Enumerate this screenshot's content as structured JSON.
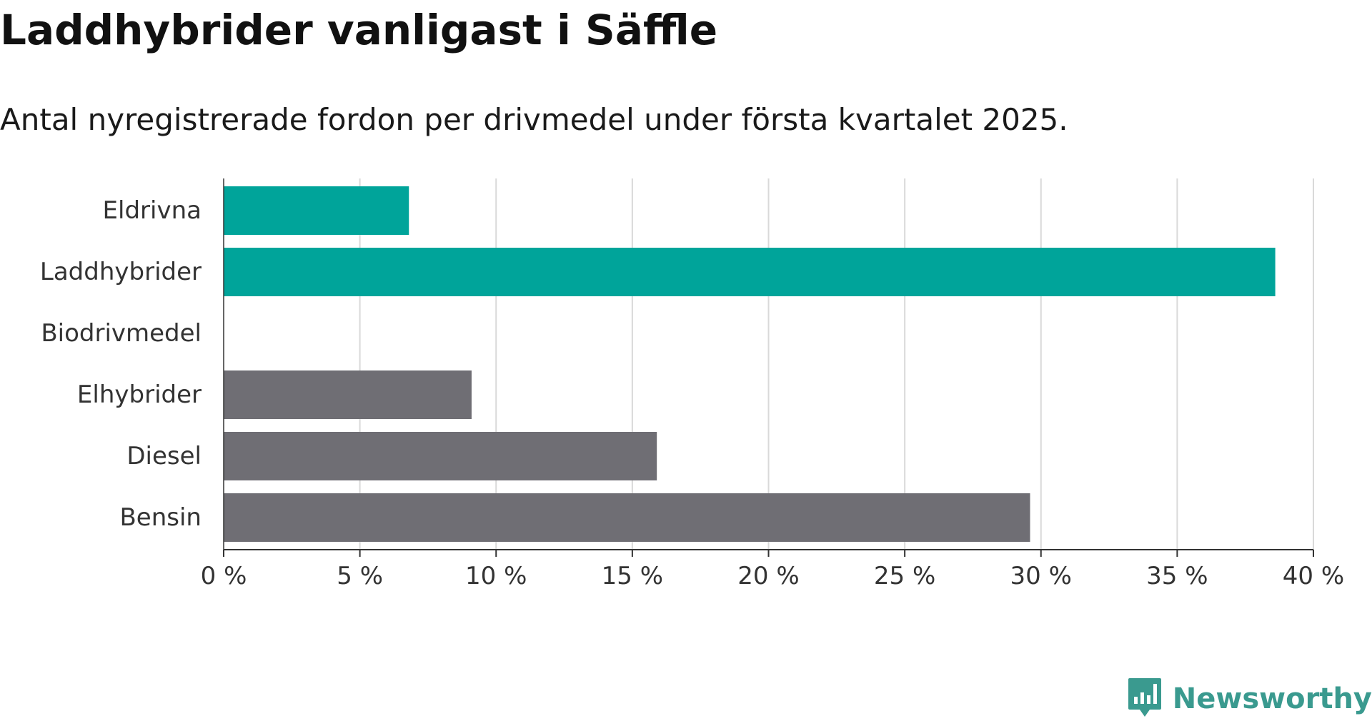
{
  "header": {
    "title": "Laddhybrider vanligast i Säffle",
    "subtitle": "Antal nyregistrerade fordon per drivmedel under första kvartalet 2025."
  },
  "chart_data": {
    "type": "bar",
    "orientation": "horizontal",
    "title": "Laddhybrider vanligast i Säffle",
    "subtitle": "Antal nyregistrerade fordon per drivmedel under första kvartalet 2025.",
    "categories": [
      "Eldrivna",
      "Laddhybrider",
      "Biodrivmedel",
      "Elhybrider",
      "Diesel",
      "Bensin"
    ],
    "values": [
      6.8,
      38.6,
      0,
      9.1,
      15.9,
      29.6
    ],
    "bar_colors": [
      "#00a49a",
      "#00a49a",
      "#00a49a",
      "#6f6e74",
      "#6f6e74",
      "#6f6e74"
    ],
    "xlim": [
      0,
      40
    ],
    "x_ticks": [
      0,
      5,
      10,
      15,
      20,
      25,
      30,
      35,
      40
    ],
    "x_tick_labels": [
      "0 %",
      "5 %",
      "10 %",
      "15 %",
      "20 %",
      "25 %",
      "30 %",
      "35 %",
      "40 %"
    ],
    "xlabel": "",
    "ylabel": "",
    "grid": true,
    "legend": "none"
  },
  "branding": {
    "name": "Newsworthy",
    "icon": "newsworthy-logo-icon",
    "color": "#3a9a8f"
  },
  "colors": {
    "accent": "#00a49a",
    "gray": "#6f6e74",
    "grid": "#d9d9d9",
    "axis": "#333333"
  }
}
